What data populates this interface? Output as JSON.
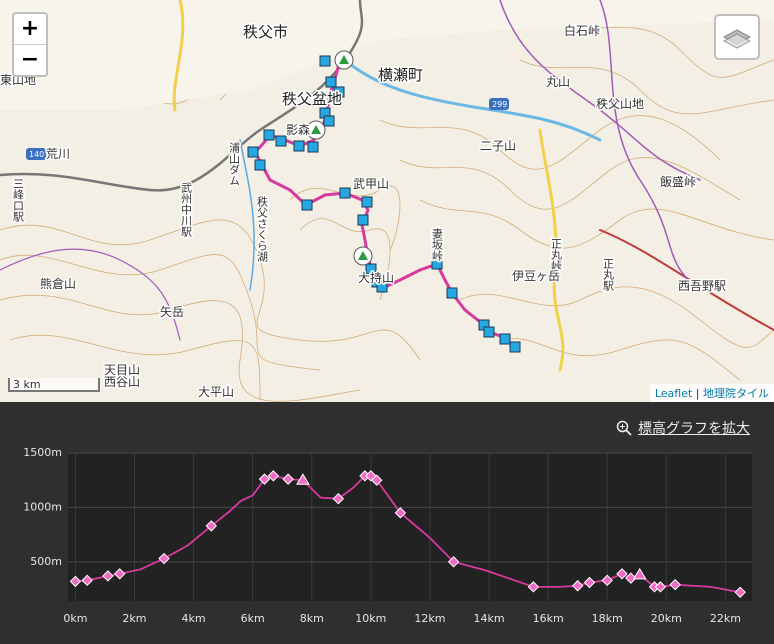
{
  "map": {
    "zoom_in": "+",
    "zoom_out": "−",
    "scale": "3 km",
    "attribution_leaflet": "Leaflet",
    "attribution_separator": "|",
    "attribution_tiles": "地理院タイル",
    "labels": [
      "秩父市",
      "横瀬町",
      "秩父盆地",
      "武甲山",
      "妻坂峠",
      "大持山",
      "正丸峠",
      "正丸駅",
      "西吾野駅",
      "飯盛峠",
      "丸山",
      "白石峠",
      "秩父山地",
      "伊豆ヶ岳",
      "天目山",
      "西谷山",
      "大平山",
      "矢岳",
      "熊倉山",
      "東山地",
      "三峰口駅",
      "武州中川駅",
      "浦山ダム",
      "秩父さくら湖",
      "140",
      "299",
      "荒川",
      "影森",
      "二子山"
    ]
  },
  "elevation_panel": {
    "expand_link": "標高グラフを拡大"
  },
  "chart_data": {
    "type": "line",
    "color": "#d8399f",
    "marker_color": "#f06cc4",
    "x": [
      0,
      0.4,
      1.1,
      1.5,
      2.2,
      3.0,
      3.8,
      4.6,
      5.2,
      5.6,
      6.0,
      6.4,
      6.7,
      7.2,
      7.7,
      8.3,
      8.9,
      9.4,
      9.8,
      10.0,
      10.2,
      11.0,
      12.0,
      12.8,
      13.9,
      15.5,
      16.4,
      17.0,
      17.4,
      18.0,
      18.5,
      18.8,
      19.1,
      19.6,
      19.8,
      20.3,
      21.5,
      22.5
    ],
    "values": [
      320,
      330,
      370,
      390,
      430,
      530,
      650,
      830,
      960,
      1060,
      1110,
      1260,
      1290,
      1260,
      1250,
      1090,
      1080,
      1180,
      1290,
      1290,
      1250,
      950,
      720,
      500,
      420,
      270,
      270,
      280,
      310,
      330,
      390,
      350,
      380,
      270,
      270,
      290,
      270,
      220
    ],
    "marker_shapes": [
      "diamond",
      "diamond",
      "diamond",
      "diamond",
      null,
      "diamond",
      null,
      "diamond",
      null,
      null,
      null,
      "diamond",
      "diamond",
      "diamond",
      "triangle",
      null,
      "diamond",
      null,
      "diamond",
      "diamond",
      "diamond",
      "diamond",
      null,
      "diamond",
      null,
      "diamond",
      null,
      "diamond",
      "diamond",
      "diamond",
      "diamond",
      "diamond",
      "triangle",
      "diamond",
      "diamond",
      "diamond",
      null,
      "diamond"
    ],
    "xlim": [
      -0.25,
      22.9
    ],
    "ylim": [
      140,
      1500
    ],
    "xticks": [
      {
        "value": 0,
        "label": "0km"
      },
      {
        "value": 2,
        "label": "2km"
      },
      {
        "value": 4,
        "label": "4km"
      },
      {
        "value": 6,
        "label": "6km"
      },
      {
        "value": 8,
        "label": "8km"
      },
      {
        "value": 10,
        "label": "10km"
      },
      {
        "value": 12,
        "label": "12km"
      },
      {
        "value": 14,
        "label": "14km"
      },
      {
        "value": 16,
        "label": "16km"
      },
      {
        "value": 18,
        "label": "18km"
      },
      {
        "value": 20,
        "label": "20km"
      },
      {
        "value": 22,
        "label": "22km"
      }
    ],
    "yticks": [
      {
        "value": 500,
        "label": "500m"
      },
      {
        "value": 1000,
        "label": "1000m"
      },
      {
        "value": 1500,
        "label": "1500m"
      }
    ],
    "grid": true
  }
}
